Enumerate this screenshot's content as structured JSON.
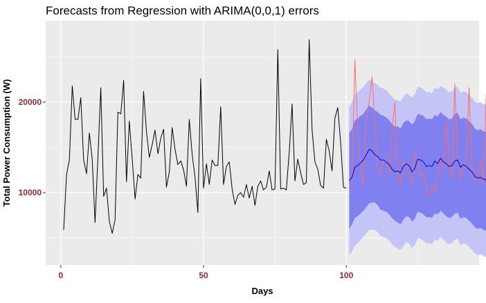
{
  "chart_data": {
    "type": "line",
    "title": "Forecasts from Regression with ARIMA(0,0,1) errors",
    "xlabel": "Days",
    "ylabel": "Total Power Consumption (W)",
    "xlim": [
      -5.3,
      146.5
    ],
    "ylim": [
      2000,
      29000
    ],
    "x_ticks": [
      0,
      50,
      100
    ],
    "y_ticks": [
      10000,
      20000
    ],
    "grid": true,
    "legend": "none",
    "colors": {
      "panel": "#ebebeb",
      "grid": "#ffffff",
      "tick_label": "#8b2c2c",
      "history": "#000000",
      "forecast": "#0000cc",
      "actual": "#ff6a6a",
      "band80": "#8080f0",
      "band95": "#c4c4f6"
    },
    "history": {
      "x_start": 1,
      "values": [
        5900,
        12000,
        13600,
        21800,
        18100,
        18100,
        20500,
        13600,
        12100,
        16600,
        13700,
        6700,
        14000,
        21600,
        9600,
        10500,
        6800,
        5500,
        7000,
        18900,
        18700,
        22400,
        11200,
        17900,
        13700,
        9300,
        12000,
        11600,
        21200,
        16700,
        13900,
        15300,
        16900,
        14300,
        16000,
        17000,
        10600,
        12300,
        17200,
        14800,
        13100,
        13500,
        12500,
        10700,
        18100,
        14200,
        11700,
        7800,
        22600,
        10500,
        13200,
        10900,
        13600,
        13000,
        13000,
        19500,
        10900,
        12900,
        13400,
        10400,
        8700,
        9700,
        10000,
        9500,
        10900,
        9400,
        10700,
        8600,
        10700,
        11300,
        10300,
        10600,
        12400,
        10300,
        10400,
        25800,
        10400,
        10500,
        10300,
        14500,
        19800,
        11300,
        13700,
        12200,
        10900,
        11100,
        26900,
        16900,
        13400,
        12600,
        10800,
        10500,
        15900,
        14600,
        12400,
        18200,
        19400,
        15600,
        10600,
        10500
      ]
    },
    "forecast": {
      "x_start": 101,
      "mean": [
        11300,
        11700,
        12800,
        13000,
        13300,
        13600,
        14200,
        14800,
        14600,
        14200,
        14000,
        13600,
        13600,
        13400,
        13100,
        12600,
        12300,
        12400,
        12200,
        12900,
        13200,
        13000,
        12300,
        12700,
        13700,
        13600,
        13400,
        12900,
        13000,
        12900,
        13500,
        13200,
        13800,
        13400,
        13200,
        12900,
        13000,
        13500,
        13600,
        12800,
        13100,
        12900,
        12600,
        12300,
        11800,
        11600,
        11700,
        11500,
        11400,
        11300
      ],
      "lo80": [
        6000,
        6500,
        7200,
        7400,
        7700,
        8000,
        8400,
        8800,
        8900,
        8900,
        8600,
        8100,
        8000,
        7900,
        7600,
        7200,
        6900,
        6700,
        6500,
        7000,
        7400,
        7300,
        6800,
        7100,
        7900,
        7800,
        7600,
        7300,
        7300,
        7200,
        7700,
        7600,
        8000,
        7700,
        7400,
        7200,
        7300,
        7700,
        7800,
        7100,
        7300,
        7200,
        6900,
        6600,
        6200,
        6000,
        6100,
        5900,
        5800,
        5700
      ],
      "hi80": [
        16600,
        17000,
        18000,
        18200,
        18500,
        18700,
        19200,
        19600,
        19400,
        19100,
        18900,
        18600,
        18500,
        18300,
        18000,
        17600,
        17300,
        17300,
        17100,
        17700,
        18000,
        17900,
        17500,
        17900,
        18700,
        18600,
        18500,
        18100,
        18200,
        18100,
        18600,
        18400,
        18900,
        18600,
        18400,
        18100,
        18200,
        18700,
        18800,
        18100,
        18300,
        18200,
        17900,
        17600,
        17100,
        16900,
        17000,
        16800,
        16700,
        16600
      ],
      "lo95": [
        3100,
        3500,
        4200,
        4400,
        4800,
        5100,
        5500,
        5900,
        5900,
        5900,
        5600,
        5200,
        5100,
        5000,
        4700,
        4300,
        4000,
        3800,
        3700,
        4100,
        4500,
        4400,
        3900,
        4200,
        5000,
        4900,
        4700,
        4400,
        4400,
        4300,
        4800,
        4700,
        5100,
        4800,
        4500,
        4300,
        4400,
        4800,
        4900,
        4200,
        4400,
        4300,
        4000,
        3700,
        3300,
        3100,
        3200,
        3000,
        2900,
        2800
      ],
      "hi95": [
        19500,
        20000,
        20900,
        21100,
        21400,
        21700,
        22100,
        22500,
        22300,
        22100,
        21900,
        21600,
        21500,
        21300,
        21000,
        20600,
        20300,
        20200,
        20100,
        20600,
        21000,
        20800,
        20500,
        20900,
        21700,
        21600,
        21400,
        21100,
        21100,
        21000,
        21600,
        21400,
        21800,
        21600,
        21400,
        21100,
        21200,
        21600,
        21700,
        21000,
        21200,
        21100,
        20800,
        20500,
        20100,
        19900,
        20000,
        19800,
        19700,
        19600
      ]
    },
    "actual": {
      "x_start": 101,
      "values": [
        11000,
        12000,
        24700,
        17000,
        12200,
        11000,
        18100,
        20000,
        22800,
        18000,
        12500,
        12000,
        13400,
        13800,
        12000,
        16800,
        20000,
        11500,
        10800,
        13500,
        13000,
        12000,
        11000,
        14600,
        13500,
        12000,
        12200,
        10500,
        9600,
        10600,
        10000,
        11900,
        13900,
        12800,
        17900,
        13200,
        11600,
        22000,
        14000,
        11400,
        12800,
        13700,
        21600,
        12000,
        11300,
        11800,
        13700,
        10900,
        20900,
        15200
      ]
    }
  }
}
